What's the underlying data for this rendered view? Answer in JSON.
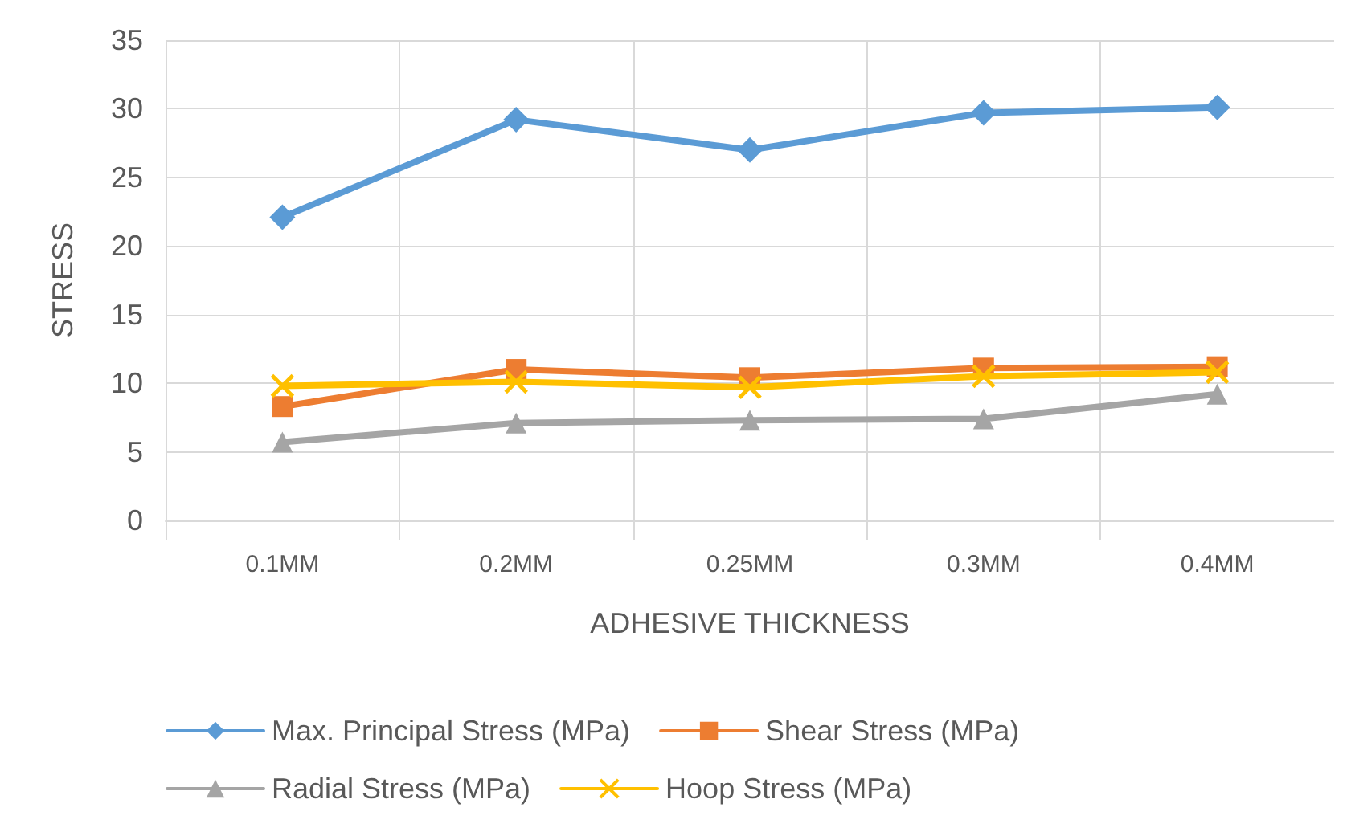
{
  "chart_data": {
    "type": "line",
    "xlabel": "ADHESIVE THICKNESS",
    "ylabel": "STRESS",
    "categories": [
      "0.1MM",
      "0.2MM",
      "0.25MM",
      "0.3MM",
      "0.4MM"
    ],
    "series": [
      {
        "name": "Max. Principal Stress (MPa)",
        "color": "#5b9bd5",
        "marker": "diamond",
        "values": [
          22.1,
          29.2,
          27.0,
          29.7,
          30.1
        ]
      },
      {
        "name": "Shear Stress (MPa)",
        "color": "#ed7d31",
        "marker": "square",
        "values": [
          8.3,
          11.0,
          10.4,
          11.1,
          11.2
        ]
      },
      {
        "name": "Radial Stress (MPa)",
        "color": "#a5a5a5",
        "marker": "triangle",
        "values": [
          5.7,
          7.1,
          7.3,
          7.4,
          9.2
        ]
      },
      {
        "name": "Hoop Stress (MPa)",
        "color": "#ffc000",
        "marker": "cross",
        "values": [
          9.8,
          10.1,
          9.7,
          10.5,
          10.8
        ]
      }
    ],
    "ylim": [
      0,
      35
    ],
    "yticks": [
      0,
      5,
      10,
      15,
      20,
      25,
      30,
      35
    ],
    "grid": true,
    "legend": "bottom",
    "line_style": "solid"
  }
}
